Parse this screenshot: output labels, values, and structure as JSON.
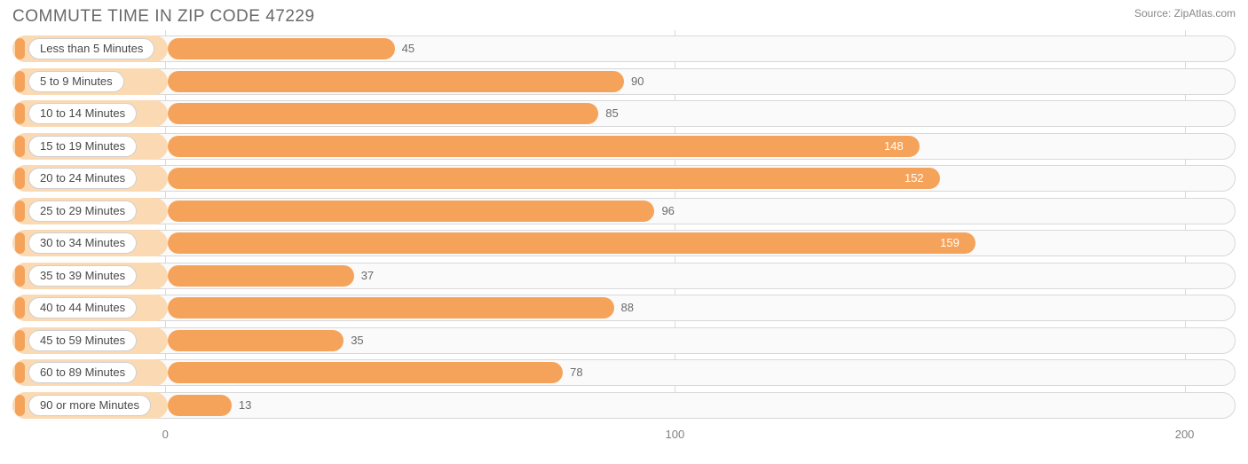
{
  "header": {
    "title": "COMMUTE TIME IN ZIP CODE 47229",
    "source": "Source: ZipAtlas.com"
  },
  "chart": {
    "type": "bar",
    "orientation": "horizontal",
    "background_color": "#ffffff",
    "track_border_color": "#d8d8d8",
    "track_bg_color": "#fafafa",
    "bar_outer_color": "#fbdab3",
    "bar_inner_color": "#f5a35b",
    "label_pill_bg": "#ffffff",
    "label_pill_border": "#cfcfcf",
    "label_text_color": "#4a4a4a",
    "value_text_color": "#6b6b6b",
    "value_text_color_inside": "#ffffff",
    "grid_color": "#d9d9d9",
    "xmin": -30,
    "xmax": 210,
    "inner_bar_start": 175,
    "xticks": [
      0,
      100,
      200
    ],
    "label_fontsize": 13,
    "title_fontsize": 19,
    "rows": [
      {
        "label": "Less than 5 Minutes",
        "value": 45
      },
      {
        "label": "5 to 9 Minutes",
        "value": 90
      },
      {
        "label": "10 to 14 Minutes",
        "value": 85
      },
      {
        "label": "15 to 19 Minutes",
        "value": 148
      },
      {
        "label": "20 to 24 Minutes",
        "value": 152
      },
      {
        "label": "25 to 29 Minutes",
        "value": 96
      },
      {
        "label": "30 to 34 Minutes",
        "value": 159
      },
      {
        "label": "35 to 39 Minutes",
        "value": 37
      },
      {
        "label": "40 to 44 Minutes",
        "value": 88
      },
      {
        "label": "45 to 59 Minutes",
        "value": 35
      },
      {
        "label": "60 to 89 Minutes",
        "value": 78
      },
      {
        "label": "90 or more Minutes",
        "value": 13
      }
    ]
  }
}
